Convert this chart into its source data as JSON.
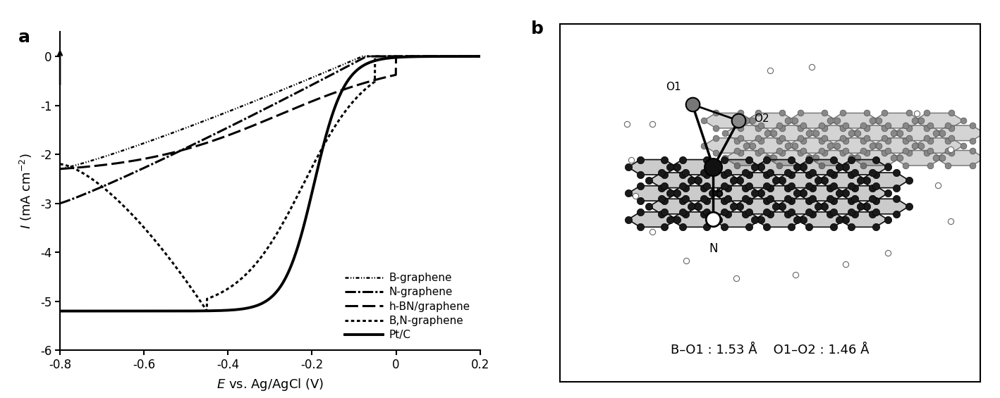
{
  "title_a": "a",
  "title_b": "b",
  "xlabel": "E vs. Ag/AgCl (V)",
  "ylabel": "I (mA cm$^{-2}$)",
  "xlim": [
    -0.8,
    0.2
  ],
  "ylim": [
    -6,
    0.5
  ],
  "xticks": [
    -0.8,
    -0.6,
    -0.4,
    -0.2,
    0.0,
    0.2
  ],
  "yticks": [
    -6,
    -5,
    -4,
    -3,
    -2,
    -1,
    0
  ],
  "legend_labels": [
    "B-graphene",
    "N-graphene",
    "h-BN/graphene",
    "B,N-graphene",
    "Pt/C"
  ],
  "annotation_text": "B–O1 : 1.53 Å    O1–O2 : 1.46 Å",
  "bg_color": "#ffffff",
  "line_color": "#000000"
}
